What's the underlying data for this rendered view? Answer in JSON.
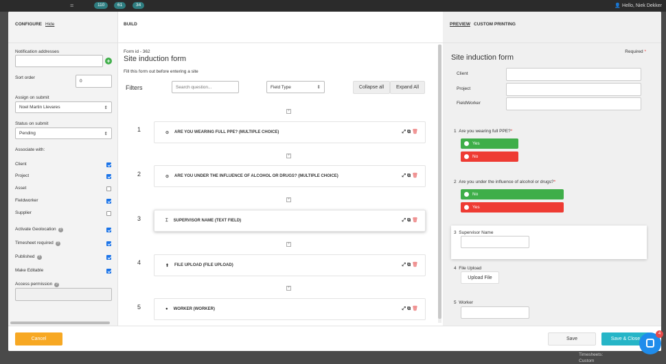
{
  "topbar": {
    "badges": [
      "110",
      "61",
      "34"
    ],
    "user": "Hello, Niek Dekker"
  },
  "configure": {
    "tab": "CONFIGURE",
    "hide": "Hide",
    "notification_label": "Notification addresses",
    "sort_label": "Sort order",
    "sort_value": "0",
    "assign_label": "Assign on submit",
    "assign_value": "Noel Martin Llevares",
    "status_label": "Status on submit",
    "status_value": "Pending",
    "associate_label": "Associate with:",
    "associations": [
      {
        "label": "Client",
        "checked": true
      },
      {
        "label": "Project",
        "checked": true
      },
      {
        "label": "Asset",
        "checked": false
      },
      {
        "label": "Fieldworker",
        "checked": true
      },
      {
        "label": "Supplier",
        "checked": false
      }
    ],
    "options": [
      {
        "label": "Activate Geolocation",
        "help": true,
        "checked": true
      },
      {
        "label": "Timesheet required",
        "help": true,
        "checked": true
      },
      {
        "label": "Published",
        "help": true,
        "checked": true
      },
      {
        "label": "Make Editable",
        "help": false,
        "checked": true
      }
    ],
    "access_label": "Access permission"
  },
  "build": {
    "tab": "BUILD",
    "form_id": "Form id - 362",
    "title": "Site induction form",
    "subtitle": "Fill this form out before entering a site",
    "filters": "Filters",
    "search_placeholder": "Search question...",
    "field_type": "Field Type",
    "collapse": "Collapse all",
    "expand": "Expand All",
    "questions": [
      {
        "num": "1",
        "icon": "⊙",
        "text": "ARE YOU WEARING FULL PPE?  (MULTIPLE CHOICE)"
      },
      {
        "num": "2",
        "icon": "⊙",
        "text": "ARE YOU UNDER THE INFLUENCE OF ALCOHOL OR DRUGS?  (MULTIPLE CHOICE)"
      },
      {
        "num": "3",
        "icon": "⌶",
        "text": "SUPERVISOR NAME  (TEXT FIELD)"
      },
      {
        "num": "4",
        "icon": "⬆",
        "text": "FILE UPLOAD  (FILE UPLOAD)"
      },
      {
        "num": "5",
        "icon": "●",
        "text": "WORKER  (WORKER)"
      }
    ]
  },
  "preview": {
    "tab_preview": "PREVIEW",
    "tab_print": "CUSTOM PRINTING",
    "required": "Required",
    "req_star": "*",
    "title": "Site induction form",
    "fields": [
      "Client",
      "Project",
      "FieldWorker"
    ],
    "q1": {
      "num": "1",
      "text": "Are you wearing full PPE?",
      "star": "*",
      "opts": [
        "Yes",
        "No"
      ]
    },
    "q2": {
      "num": "2",
      "text": "Are you under the influence of alcohol or drugs?",
      "star": "*",
      "opts": [
        "No",
        "Yes"
      ]
    },
    "q3": {
      "num": "3",
      "text": "Supervisor Name"
    },
    "q4": {
      "num": "4",
      "text": "File Upload",
      "button": "Upload File"
    },
    "q5": {
      "num": "5",
      "text": "Worker"
    }
  },
  "footer": {
    "cancel": "Cancel",
    "save": "Save",
    "save_close": "Save & Close",
    "chat_count": "4"
  },
  "background": {
    "timesheets": "Timesheets:",
    "custom": "Custom"
  },
  "colors": {
    "cancel": "#f7a823",
    "save_close": "#26b5c7",
    "chat": "#1f8ceb"
  }
}
